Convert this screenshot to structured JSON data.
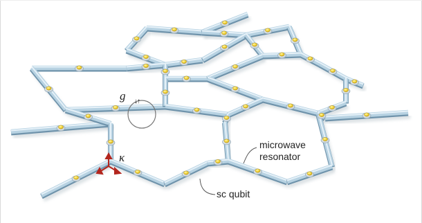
{
  "annotations": {
    "coupling_symbol": "g",
    "spin_symbol": "↓↑",
    "loss_symbol": "κ",
    "resonator_label_line1": "microwave",
    "resonator_label_line2": "resonator",
    "qubit_label": "sc qubit"
  },
  "colors": {
    "resonator_fill": "#b7d2e2",
    "resonator_highlight": "#e6f1f8",
    "resonator_shadow": "#6f93ab",
    "qubit_fill": "#f2d53c",
    "qubit_base": "#dfe6ea",
    "loss_arrows": "#b3261e",
    "callout_stroke": "#666666"
  }
}
